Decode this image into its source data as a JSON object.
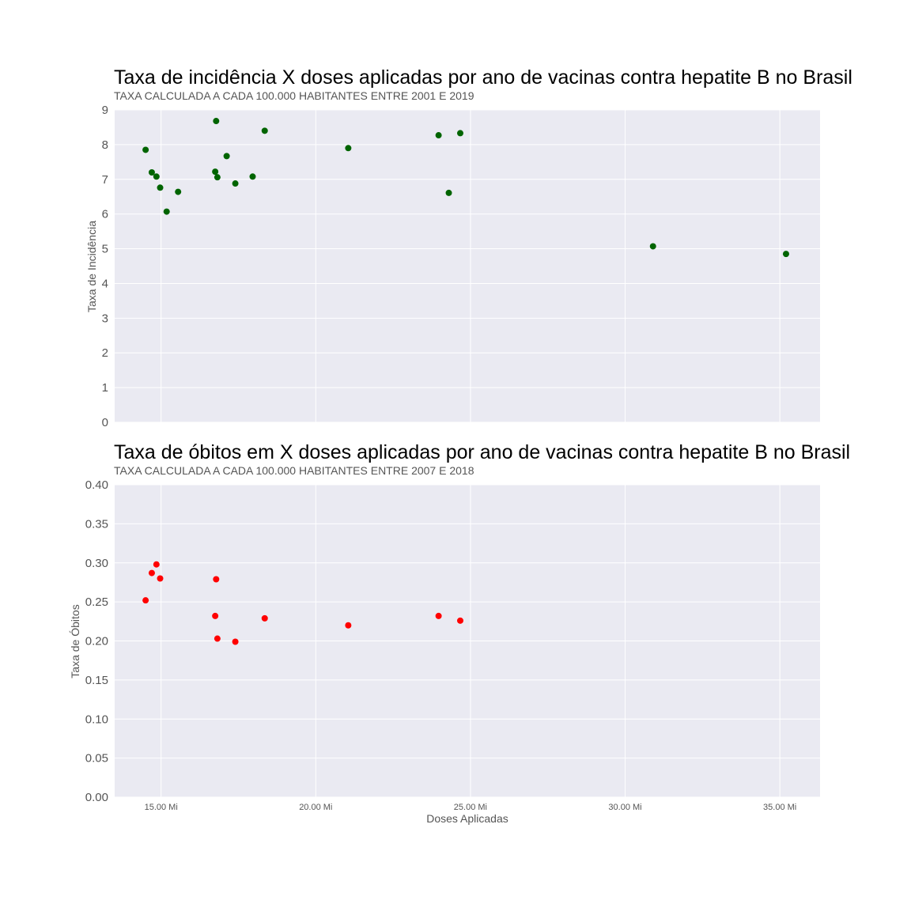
{
  "chart_data": [
    {
      "type": "scatter",
      "title": "Taxa de incidência X doses aplicadas por ano de vacinas contra hepatite B no Brasil",
      "subtitle": "TAXA CALCULADA A CADA 100.000 HABITANTES ENTRE 2001 E 2019",
      "xlabel": "",
      "ylabel": "Taxa de Incidência",
      "xlim": [
        13.5,
        36.3
      ],
      "ylim": [
        0,
        9
      ],
      "yticks": [
        "0",
        "1",
        "2",
        "3",
        "4",
        "5",
        "6",
        "7",
        "8",
        "9"
      ],
      "grid": true,
      "color": "#006400",
      "points": [
        {
          "x": 14.5,
          "y": 7.85
        },
        {
          "x": 14.7,
          "y": 7.2
        },
        {
          "x": 14.85,
          "y": 7.08
        },
        {
          "x": 14.97,
          "y": 6.76
        },
        {
          "x": 15.18,
          "y": 6.07
        },
        {
          "x": 15.55,
          "y": 6.64
        },
        {
          "x": 16.75,
          "y": 7.22
        },
        {
          "x": 16.78,
          "y": 8.68
        },
        {
          "x": 16.82,
          "y": 7.06
        },
        {
          "x": 17.12,
          "y": 7.67
        },
        {
          "x": 17.4,
          "y": 6.88
        },
        {
          "x": 17.96,
          "y": 7.08
        },
        {
          "x": 18.35,
          "y": 8.4
        },
        {
          "x": 21.05,
          "y": 7.9
        },
        {
          "x": 23.97,
          "y": 8.27
        },
        {
          "x": 24.3,
          "y": 6.61
        },
        {
          "x": 24.67,
          "y": 8.33
        },
        {
          "x": 30.9,
          "y": 5.07
        },
        {
          "x": 35.2,
          "y": 4.85
        }
      ]
    },
    {
      "type": "scatter",
      "title": "Taxa de óbitos em X doses aplicadas por ano de vacinas contra hepatite B no Brasil",
      "subtitle": "TAXA CALCULADA A CADA 100.000 HABITANTES ENTRE 2007 E 2018",
      "xlabel": "Doses Aplicadas",
      "ylabel": "Taxa de Óbitos",
      "xlim": [
        13.5,
        36.3
      ],
      "ylim": [
        0,
        0.4
      ],
      "yticks": [
        "0.00",
        "0.05",
        "0.10",
        "0.15",
        "0.20",
        "0.25",
        "0.30",
        "0.35",
        "0.40"
      ],
      "xticks": [
        {
          "v": 15,
          "label": "15.00 Mi"
        },
        {
          "v": 20,
          "label": "20.00 Mi"
        },
        {
          "v": 25,
          "label": "25.00 Mi"
        },
        {
          "v": 30,
          "label": "30.00 Mi"
        },
        {
          "v": 35,
          "label": "35.00 Mi"
        }
      ],
      "grid": true,
      "color": "#ff0000",
      "points": [
        {
          "x": 14.5,
          "y": 0.252
        },
        {
          "x": 14.7,
          "y": 0.287
        },
        {
          "x": 14.85,
          "y": 0.298
        },
        {
          "x": 14.97,
          "y": 0.28
        },
        {
          "x": 16.75,
          "y": 0.232
        },
        {
          "x": 16.78,
          "y": 0.279
        },
        {
          "x": 16.82,
          "y": 0.203
        },
        {
          "x": 17.4,
          "y": 0.199
        },
        {
          "x": 18.35,
          "y": 0.229
        },
        {
          "x": 21.05,
          "y": 0.22
        },
        {
          "x": 23.97,
          "y": 0.232
        },
        {
          "x": 24.67,
          "y": 0.226
        }
      ]
    }
  ]
}
